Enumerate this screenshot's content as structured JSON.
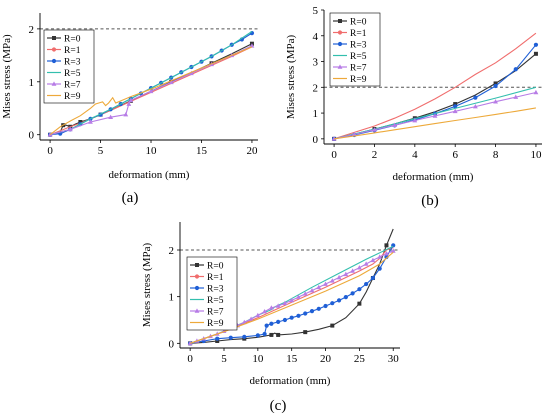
{
  "series_colors": [
    "#333333",
    "#f06d6d",
    "#1f5fd6",
    "#33bfae",
    "#b77ce6",
    "#eda93a"
  ],
  "chart_data": [
    {
      "id": "a",
      "panel_label": "(a)",
      "type": "line",
      "xlabel": "deformation (mm)",
      "ylabel": "Mises stress (MPa)",
      "xlim": [
        -1,
        20.6
      ],
      "ylim": [
        -0.1,
        2.3
      ],
      "xticks": [
        0,
        5,
        10,
        15,
        20
      ],
      "yticks": [
        0,
        1,
        2
      ],
      "ref_y": 2,
      "legend_position": "top-left",
      "series": [
        {
          "name": "R=0",
          "x": [
            0,
            1,
            1.3,
            1.6,
            2,
            2.5,
            3,
            4,
            5,
            6,
            8,
            10,
            12,
            14,
            16,
            18,
            20
          ],
          "y": [
            0,
            0.05,
            0.18,
            0.18,
            0.15,
            0.2,
            0.24,
            0.3,
            0.38,
            0.46,
            0.64,
            0.82,
            1.0,
            1.17,
            1.35,
            1.53,
            1.72
          ]
        },
        {
          "name": "R=1",
          "x": [
            0,
            2,
            3,
            4,
            5,
            6,
            8,
            10,
            12,
            14,
            16,
            18,
            20
          ],
          "y": [
            0,
            0.15,
            0.22,
            0.3,
            0.38,
            0.46,
            0.63,
            0.8,
            0.97,
            1.14,
            1.31,
            1.48,
            1.66
          ]
        },
        {
          "name": "R=3",
          "x": [
            0,
            1,
            2,
            3,
            4,
            5,
            6,
            7,
            8,
            9,
            10,
            11,
            12,
            13,
            14,
            15,
            16,
            17,
            18,
            19,
            20
          ],
          "y": [
            0,
            0.02,
            0.1,
            0.2,
            0.3,
            0.38,
            0.48,
            0.58,
            0.68,
            0.78,
            0.88,
            0.98,
            1.08,
            1.18,
            1.28,
            1.38,
            1.48,
            1.59,
            1.7,
            1.8,
            1.92
          ]
        },
        {
          "name": "R=5",
          "x": [
            0,
            2,
            4,
            6,
            8,
            10,
            12,
            14,
            16,
            18,
            20
          ],
          "y": [
            0,
            0.1,
            0.3,
            0.48,
            0.68,
            0.88,
            1.08,
            1.28,
            1.48,
            1.7,
            1.95
          ]
        },
        {
          "name": "R=7",
          "x": [
            0,
            2,
            4,
            6,
            7.5,
            7.8,
            8,
            10,
            12,
            14,
            16,
            18,
            20
          ],
          "y": [
            0,
            0.1,
            0.24,
            0.33,
            0.38,
            0.58,
            0.65,
            0.82,
            0.99,
            1.16,
            1.33,
            1.5,
            1.68
          ]
        },
        {
          "name": "R=9",
          "x": [
            0,
            1,
            2,
            3,
            4,
            4.5,
            5.2,
            5.5,
            5.8,
            6.2,
            6.5,
            8,
            10,
            12,
            14,
            16,
            18,
            20
          ],
          "y": [
            0,
            0.15,
            0.26,
            0.36,
            0.5,
            0.58,
            0.62,
            0.55,
            0.6,
            0.7,
            0.6,
            0.72,
            0.86,
            1.02,
            1.18,
            1.34,
            1.5,
            1.66
          ]
        }
      ]
    },
    {
      "id": "b",
      "panel_label": "(b)",
      "type": "line",
      "xlabel": "deformation (mm)",
      "ylabel": "Mises stress (MPa)",
      "xlim": [
        -0.5,
        10.3
      ],
      "ylim": [
        -0.2,
        5
      ],
      "xticks": [
        0,
        2,
        4,
        6,
        8,
        10
      ],
      "yticks": [
        0,
        1,
        2,
        3,
        4,
        5
      ],
      "ref_y": 2,
      "legend_position": "top-left",
      "series": [
        {
          "name": "R=0",
          "x": [
            0,
            1,
            2,
            3,
            4,
            5,
            6,
            7,
            8,
            9,
            10
          ],
          "y": [
            0,
            0.18,
            0.38,
            0.58,
            0.8,
            1.05,
            1.35,
            1.7,
            2.15,
            2.65,
            3.3
          ]
        },
        {
          "name": "R=1",
          "x": [
            0,
            1,
            2,
            3,
            4,
            5,
            6,
            7,
            8,
            9,
            10
          ],
          "y": [
            0,
            0.25,
            0.5,
            0.8,
            1.15,
            1.55,
            2.0,
            2.5,
            2.95,
            3.5,
            4.1
          ]
        },
        {
          "name": "R=3",
          "x": [
            0,
            1,
            2,
            3,
            4,
            5,
            6,
            7,
            8,
            9,
            10
          ],
          "y": [
            0,
            0.15,
            0.33,
            0.52,
            0.74,
            0.98,
            1.26,
            1.6,
            2.05,
            2.7,
            3.65
          ]
        },
        {
          "name": "R=5",
          "x": [
            0,
            2,
            4,
            6,
            8,
            10
          ],
          "y": [
            0,
            0.38,
            0.78,
            1.18,
            1.58,
            2.0
          ]
        },
        {
          "name": "R=7",
          "x": [
            0,
            1,
            2,
            3,
            4,
            5,
            6,
            7,
            8,
            9,
            10
          ],
          "y": [
            0,
            0.17,
            0.35,
            0.53,
            0.71,
            0.89,
            1.07,
            1.25,
            1.44,
            1.62,
            1.8
          ]
        },
        {
          "name": "R=9",
          "x": [
            0,
            1,
            2,
            3,
            4,
            5,
            6,
            7,
            8,
            9,
            10
          ],
          "y": [
            0,
            0.11,
            0.23,
            0.35,
            0.47,
            0.59,
            0.71,
            0.83,
            0.95,
            1.07,
            1.2
          ]
        }
      ]
    },
    {
      "id": "c",
      "panel_label": "(c)",
      "type": "line",
      "xlabel": "deformation (mm)",
      "ylabel": "Mises stress (MPa)",
      "xlim": [
        -1.5,
        31
      ],
      "ylim": [
        -0.1,
        2.6
      ],
      "xticks": [
        0,
        5,
        10,
        15,
        20,
        25,
        30
      ],
      "yticks": [
        0,
        1,
        2
      ],
      "ref_y": 2,
      "legend_position": "top-left",
      "series": [
        {
          "name": "R=0",
          "x": [
            0,
            2,
            4,
            6,
            8,
            10,
            12,
            12.5,
            13,
            15,
            17,
            19,
            21,
            23,
            25,
            26,
            27,
            28,
            29,
            30
          ],
          "y": [
            0,
            0.02,
            0.05,
            0.08,
            0.1,
            0.13,
            0.18,
            0.22,
            0.18,
            0.2,
            0.24,
            0.3,
            0.38,
            0.55,
            0.85,
            1.1,
            1.4,
            1.7,
            2.1,
            2.45
          ]
        },
        {
          "name": "R=1",
          "x": [
            0,
            5,
            10,
            15,
            20,
            25,
            27,
            28,
            29,
            30
          ],
          "y": [
            0,
            0.25,
            0.55,
            0.88,
            1.2,
            1.55,
            1.7,
            1.82,
            2.0,
            2.05
          ]
        },
        {
          "name": "R=3",
          "x": [
            0,
            2,
            4,
            6,
            8,
            10,
            11,
            11.3,
            12,
            13,
            14,
            15,
            16,
            17,
            18,
            19,
            20,
            21,
            22,
            23,
            24,
            25,
            26,
            27,
            28,
            29,
            30
          ],
          "y": [
            0,
            0.05,
            0.1,
            0.12,
            0.14,
            0.17,
            0.2,
            0.38,
            0.42,
            0.46,
            0.5,
            0.55,
            0.59,
            0.64,
            0.69,
            0.74,
            0.8,
            0.86,
            0.92,
            0.99,
            1.07,
            1.16,
            1.27,
            1.4,
            1.6,
            1.85,
            2.1
          ]
        },
        {
          "name": "R=5",
          "x": [
            0,
            4,
            8,
            10,
            12,
            12.5,
            14,
            18,
            22,
            26,
            30
          ],
          "y": [
            0,
            0.2,
            0.45,
            0.6,
            0.72,
            0.78,
            0.88,
            1.2,
            1.5,
            1.8,
            2.08
          ]
        },
        {
          "name": "R=7",
          "x": [
            0,
            1,
            2,
            3,
            4,
            5,
            6,
            7,
            8,
            9,
            10,
            11,
            12,
            13,
            14,
            15,
            16,
            17,
            18,
            19,
            20,
            21,
            22,
            23,
            24,
            25,
            26,
            27,
            28,
            29,
            30
          ],
          "y": [
            0,
            0.05,
            0.1,
            0.15,
            0.2,
            0.26,
            0.32,
            0.38,
            0.45,
            0.52,
            0.6,
            0.68,
            0.76,
            0.8,
            0.86,
            0.92,
            0.99,
            1.06,
            1.13,
            1.2,
            1.27,
            1.34,
            1.41,
            1.48,
            1.55,
            1.62,
            1.7,
            1.78,
            1.85,
            1.92,
            1.98
          ]
        },
        {
          "name": "R=9",
          "x": [
            0,
            5,
            10,
            15,
            20,
            25,
            28,
            30
          ],
          "y": [
            0,
            0.25,
            0.52,
            0.82,
            1.12,
            1.45,
            1.7,
            1.95
          ]
        }
      ]
    }
  ]
}
